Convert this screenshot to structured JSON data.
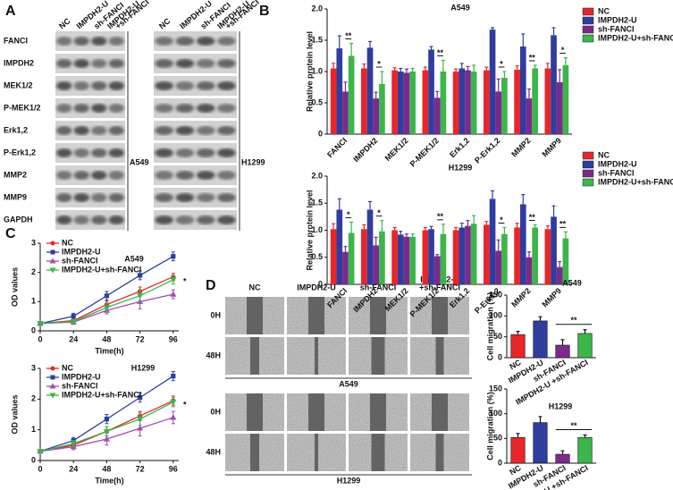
{
  "panel_labels": [
    "A",
    "B",
    "C",
    "D"
  ],
  "blot": {
    "lanes": [
      [
        "NC"
      ],
      [
        "IMPDH2-U"
      ],
      [
        "sh-FANCI"
      ],
      [
        "IMPDH2-U",
        "+sh-FANCI"
      ]
    ],
    "proteins": [
      "FANCI",
      "IMPDH2",
      "MEK1/2",
      "P-MEK1/2",
      "Erk1,2",
      "P-Erk1,2",
      "MMP2",
      "MMP9",
      "GAPDH"
    ],
    "cell_lines": [
      "A549",
      "H1299"
    ]
  },
  "migration": {
    "columns": [
      [
        "NC"
      ],
      [
        "IMPDH2-U"
      ],
      [
        "sh-FANCI"
      ],
      [
        "IMPDH2-U",
        "+sh-FANCI"
      ]
    ],
    "rows": [
      "0H",
      "48H"
    ],
    "cell_lines": [
      "A549",
      "H1299"
    ]
  },
  "chart_data": [
    {
      "type": "bar",
      "title": "A549",
      "y_label": "Relative protein level",
      "categories": [
        "FANCI",
        "IMPDH2",
        "MEK1/2",
        "P-MEK1/2",
        "Erk1,2",
        "P-Erk1,2",
        "MMP2",
        "MMP9"
      ],
      "series": [
        {
          "name": "NC",
          "color": "#e8262a",
          "values": [
            1.05,
            1.05,
            1.02,
            1.02,
            1.0,
            1.02,
            1.03,
            1.05
          ],
          "errors": [
            0.08,
            0.07,
            0.04,
            0.05,
            0.04,
            0.05,
            0.06,
            0.08
          ]
        },
        {
          "name": "IMPDH2-U",
          "color": "#2f3d9e",
          "values": [
            1.37,
            1.38,
            1.0,
            1.35,
            1.05,
            1.67,
            1.4,
            1.58
          ],
          "errors": [
            0.2,
            0.1,
            0.05,
            0.05,
            0.08,
            0.03,
            0.2,
            0.12
          ]
        },
        {
          "name": "sh-FANCI",
          "color": "#7b2a8c",
          "values": [
            0.68,
            0.57,
            0.98,
            0.58,
            1.02,
            0.68,
            0.57,
            0.83
          ],
          "errors": [
            0.15,
            0.1,
            0.06,
            0.1,
            0.06,
            0.2,
            0.15,
            0.2
          ]
        },
        {
          "name": "IMPDH2-U+sh-FANCI",
          "color": "#3cb54a",
          "values": [
            1.25,
            0.8,
            1.0,
            1.0,
            1.0,
            0.9,
            1.05,
            1.1
          ],
          "errors": [
            0.2,
            0.2,
            0.05,
            0.18,
            0.1,
            0.1,
            0.05,
            0.12
          ]
        }
      ],
      "significance": [
        "**",
        "*",
        null,
        "**",
        null,
        "*",
        "**",
        "*"
      ],
      "ylim": [
        0,
        2
      ],
      "yticks": [
        0,
        0.5,
        {
          "value": 1,
          "label": "1.0"
        },
        1.5,
        {
          "value": 2,
          "label": "2.0"
        }
      ]
    },
    {
      "type": "bar",
      "title": "H1299",
      "y_label": "Relative protein level",
      "categories": [
        "FANCI",
        "IMPDH2",
        "MEK1/2",
        "P-MEK1/2",
        "Erk1,2",
        "P-Erk1,2",
        "MMP2",
        "MMP9"
      ],
      "series": [
        {
          "name": "NC",
          "color": "#e8262a",
          "values": [
            1.02,
            1.02,
            1.0,
            1.0,
            1.0,
            1.1,
            1.05,
            1.02
          ],
          "errors": [
            0.1,
            0.08,
            0.05,
            0.05,
            0.05,
            0.06,
            0.08,
            0.06
          ]
        },
        {
          "name": "IMPDH2-U",
          "color": "#2f3d9e",
          "values": [
            1.38,
            1.38,
            0.92,
            1.02,
            1.05,
            1.58,
            1.48,
            1.25
          ],
          "errors": [
            0.2,
            0.15,
            0.06,
            0.05,
            0.08,
            0.15,
            0.18,
            0.2
          ]
        },
        {
          "name": "sh-FANCI",
          "color": "#7b2a8c",
          "values": [
            0.6,
            0.72,
            0.88,
            0.52,
            1.08,
            0.62,
            0.5,
            0.32
          ],
          "errors": [
            0.1,
            0.15,
            0.05,
            0.03,
            0.1,
            0.2,
            0.1,
            0.1
          ]
        },
        {
          "name": "IMPDH2-U+sh-FANCI",
          "color": "#3cb54a",
          "values": [
            0.95,
            0.98,
            0.88,
            0.93,
            1.12,
            0.93,
            1.05,
            0.85
          ],
          "errors": [
            0.2,
            0.2,
            0.05,
            0.18,
            0.15,
            0.12,
            0.05,
            0.12
          ]
        }
      ],
      "significance": [
        "*",
        "*",
        null,
        "**",
        null,
        "*",
        "**",
        "**"
      ],
      "ylim": [
        0,
        2
      ],
      "yticks": [
        0,
        0.5,
        {
          "value": 1,
          "label": "1.0"
        },
        1.5,
        {
          "value": 2,
          "label": "2.0"
        }
      ]
    },
    {
      "type": "line",
      "title": "A549",
      "y_label": "OD values",
      "x_label": "Time(h)",
      "x": [
        0,
        24,
        48,
        72,
        96
      ],
      "series": [
        {
          "name": "NC",
          "color": "#e8262a",
          "marker": "circle",
          "values": [
            0.25,
            0.35,
            0.9,
            1.35,
            1.85
          ],
          "errors": [
            0.03,
            0.08,
            0.12,
            0.15,
            0.12
          ]
        },
        {
          "name": "IMPDH2-U",
          "color": "#2f3d9e",
          "marker": "square",
          "values": [
            0.25,
            0.5,
            1.2,
            1.9,
            2.55
          ],
          "errors": [
            0.03,
            0.1,
            0.15,
            0.15,
            0.15
          ]
        },
        {
          "name": "sh-FANCI",
          "color": "#a04cb5",
          "marker": "triangle-up",
          "values": [
            0.25,
            0.3,
            0.7,
            1.0,
            1.25
          ],
          "errors": [
            0.03,
            0.08,
            0.12,
            0.25,
            0.15
          ]
        },
        {
          "name": "IMPDH2-U+sh-FANCI",
          "color": "#3cb54a",
          "marker": "triangle-down",
          "values": [
            0.25,
            0.32,
            0.8,
            1.2,
            1.75
          ],
          "errors": [
            0.03,
            0.08,
            0.15,
            0.2,
            0.15
          ]
        }
      ],
      "annotation": "*",
      "xlim": [
        0,
        100
      ],
      "xticks": [
        0,
        24,
        48,
        72,
        96
      ],
      "ylim": [
        0,
        3
      ],
      "yticks": [
        0,
        1,
        2,
        3
      ]
    },
    {
      "type": "line",
      "title": "H1299",
      "y_label": "OD values",
      "x_label": "Time(h)",
      "x": [
        0,
        24,
        48,
        72,
        96
      ],
      "series": [
        {
          "name": "NC",
          "color": "#e8262a",
          "marker": "circle",
          "values": [
            0.3,
            0.5,
            0.95,
            1.45,
            1.95
          ],
          "errors": [
            0.03,
            0.1,
            0.15,
            0.15,
            0.15
          ]
        },
        {
          "name": "IMPDH2-U",
          "color": "#2f3d9e",
          "marker": "square",
          "values": [
            0.3,
            0.65,
            1.35,
            2.05,
            2.75
          ],
          "errors": [
            0.03,
            0.1,
            0.15,
            0.15,
            0.15
          ]
        },
        {
          "name": "sh-FANCI",
          "color": "#a04cb5",
          "marker": "triangle-up",
          "values": [
            0.3,
            0.45,
            0.7,
            1.05,
            1.4
          ],
          "errors": [
            0.03,
            0.1,
            0.2,
            0.25,
            0.2
          ]
        },
        {
          "name": "IMPDH2-U+sh-FANCI",
          "color": "#3cb54a",
          "marker": "triangle-down",
          "values": [
            0.3,
            0.55,
            0.95,
            1.35,
            1.9
          ],
          "errors": [
            0.03,
            0.1,
            0.15,
            0.2,
            0.15
          ]
        }
      ],
      "annotation": "*",
      "xlim": [
        0,
        100
      ],
      "xticks": [
        0,
        24,
        48,
        72,
        96
      ],
      "ylim": [
        0,
        3
      ],
      "yticks": [
        0,
        1,
        2,
        3
      ]
    },
    {
      "type": "bar",
      "title": "A549",
      "y_label": "Cell migration (%)",
      "categories": [
        "NC",
        "IMPDH2-U",
        "sh-FANCI",
        "IMPDH2-U +sh-FANCI"
      ],
      "values": [
        55,
        88,
        30,
        58
      ],
      "errors": [
        8,
        10,
        13,
        9
      ],
      "colors": [
        "#e8262a",
        "#2f3d9e",
        "#7b2a8c",
        "#3cb54a"
      ],
      "significance": "**",
      "ylim": [
        0,
        150
      ],
      "yticks": [
        0,
        50,
        100,
        150
      ]
    },
    {
      "type": "bar",
      "title": "H1299",
      "y_label": "Cell migration (%)",
      "categories": [
        "NC",
        "IMPDH2-U",
        "sh-FANCI",
        "IMPDH2-U +sh-FANCI"
      ],
      "values": [
        52,
        82,
        18,
        52
      ],
      "errors": [
        8,
        12,
        7,
        5
      ],
      "colors": [
        "#e8262a",
        "#2f3d9e",
        "#7b2a8c",
        "#3cb54a"
      ],
      "significance": "**",
      "ylim": [
        0,
        150
      ],
      "yticks": [
        0,
        50,
        100,
        150
      ]
    }
  ]
}
